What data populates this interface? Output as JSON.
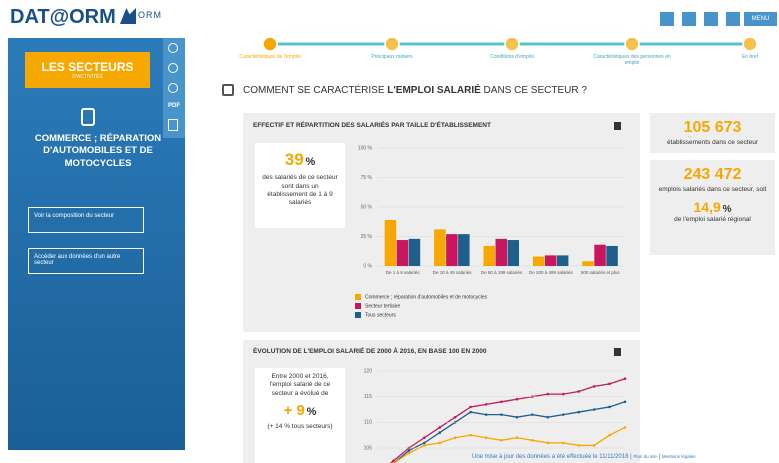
{
  "header": {
    "logo": "DAT@ORM",
    "logo_suffix": "ORM",
    "menu": "MENU"
  },
  "sidebar": {
    "section_title": "LES SECTEURS",
    "section_subtitle": "D'ACTIVITÉS",
    "pdf": "PDF",
    "sector": "COMMERCE ; RÉPARATION D'AUTOMOBILES ET DE MOTOCYCLES",
    "buttons": [
      "Voir la composition du secteur",
      "Accéder aux données d'un autre secteur"
    ]
  },
  "steps": [
    "Caractéristiques de l'emploi",
    "Principaux métiers",
    "Conditions d'emploi",
    "Caractéristiques des personnes en emploi",
    "En bref"
  ],
  "question": {
    "before": "COMMENT SE CARACTÉRISE ",
    "bold": "L'EMPLOI SALARIÉ",
    "after": " DANS CE SECTEUR ?"
  },
  "stats": {
    "establishments": {
      "value": "105 673",
      "label": "établissements dans ce secteur"
    },
    "jobs": {
      "value": "243 472",
      "label": "emplois salariés dans ce secteur, soit"
    },
    "share": {
      "value": "14,9",
      "unit": "%",
      "label": "de l'emploi salarié régional"
    }
  },
  "chart_data": [
    {
      "type": "bar",
      "title": "EFFECTIF ET RÉPARTITION DES SALARIÉS PAR TAILLE D'ÉTABLISSEMENT",
      "highlight": {
        "value": 39,
        "unit": "%",
        "text": "des salariés de ce secteur sont dans un établissement de 1 à 9 salariés"
      },
      "categories": [
        "De 1 à 9 salariés",
        "De 10 à 49 salariés",
        "De 50 à 199 salariés",
        "De 200 à 499 salariés",
        "500 salariés et plus"
      ],
      "series": [
        {
          "name": "Commerce ; réparation d'automobiles et de motocycles",
          "color": "#f6a800",
          "values": [
            39,
            31,
            17,
            8,
            4
          ]
        },
        {
          "name": "Secteur tertiaire",
          "color": "#c8175e",
          "values": [
            22,
            27,
            23,
            9,
            18
          ]
        },
        {
          "name": "Tous secteurs",
          "color": "#1e5f8c",
          "values": [
            23,
            27,
            22,
            9,
            17
          ]
        }
      ],
      "ylim": [
        0,
        100
      ],
      "yticks": [
        {
          "value": 0,
          "label": "0 %"
        },
        {
          "value": 25,
          "label": "25 %"
        },
        {
          "value": 50,
          "label": "50 %"
        },
        {
          "value": 75,
          "label": "75 %"
        },
        {
          "value": 100,
          "label": "100 %"
        }
      ],
      "grid": true
    },
    {
      "type": "line",
      "title": "ÉVOLUTION DE L'EMPLOI SALARIÉ DE 2000 À 2016, EN BASE 100 EN 2000",
      "highlight": {
        "text": "Entre 2000 et 2016, l'emploi salarié de ce secteur a évolué de",
        "value": "+ 9",
        "unit": "%",
        "note": "(+ 14 % tous secteurs)"
      },
      "series": [
        {
          "color": "#c8175e",
          "values": [
            100,
            102.5,
            105,
            107,
            109,
            111,
            113,
            113.5,
            114,
            114.5,
            115,
            115.5,
            115.5,
            116,
            117,
            117.5,
            118.5
          ]
        },
        {
          "color": "#1e5f8c",
          "values": [
            100,
            102,
            104.5,
            106,
            108,
            110,
            112,
            111.5,
            111.5,
            111,
            111.5,
            111,
            111.5,
            112,
            112.5,
            113,
            114
          ]
        },
        {
          "color": "#f6a800",
          "values": [
            100,
            102,
            104,
            105.5,
            106,
            107,
            107.5,
            107,
            106.5,
            107,
            106.5,
            106,
            106,
            105.5,
            105.5,
            107.5,
            109
          ]
        }
      ],
      "ylim": [
        104,
        121
      ],
      "yticks": [
        105,
        110,
        115,
        120
      ],
      "grid": true
    }
  ],
  "footer": {
    "update": "Une mise à jour des données a été effectuée le 11/11/2018",
    "links": [
      "Plan du site",
      "Mentions légales"
    ]
  }
}
